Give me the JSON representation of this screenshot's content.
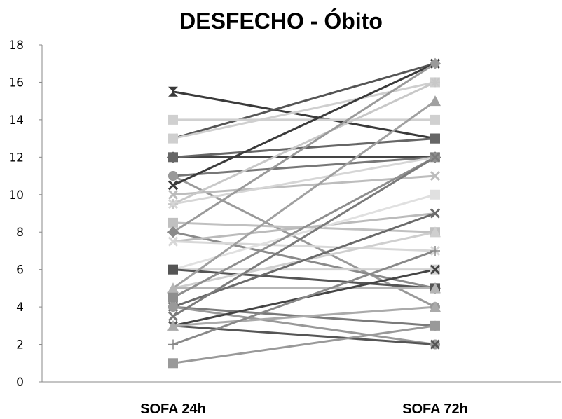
{
  "chart_data": {
    "type": "line",
    "title": "DESFECHO - Óbito",
    "xlabel": "",
    "ylabel": "",
    "categories": [
      "SOFA 24h",
      "SOFA 72h"
    ],
    "ylim": [
      0,
      18
    ],
    "yticks": [
      0,
      2,
      4,
      6,
      8,
      10,
      12,
      14,
      16,
      18
    ],
    "grid": false,
    "legend": "none",
    "series": [
      {
        "values": [
          15.5,
          13
        ],
        "color": "#3a3a3a",
        "marker": "hourglass"
      },
      {
        "values": [
          13,
          17
        ],
        "color": "#555555",
        "marker": "x"
      },
      {
        "values": [
          14,
          14
        ],
        "color": "#d0d0d0",
        "marker": "square"
      },
      {
        "values": [
          13,
          16
        ],
        "color": "#cfcfcf",
        "marker": "square"
      },
      {
        "values": [
          12,
          12
        ],
        "color": "#444444",
        "marker": "diamond"
      },
      {
        "values": [
          12,
          13
        ],
        "color": "#666666",
        "marker": "square"
      },
      {
        "values": [
          11,
          12
        ],
        "color": "#777777",
        "marker": "circle"
      },
      {
        "values": [
          11,
          4
        ],
        "color": "#999999",
        "marker": "circle"
      },
      {
        "values": [
          10.5,
          17
        ],
        "color": "#3a3a3a",
        "marker": "x"
      },
      {
        "values": [
          10,
          11
        ],
        "color": "#bdbdbd",
        "marker": "x"
      },
      {
        "values": [
          9.5,
          16
        ],
        "color": "#c8c8c8",
        "marker": "star"
      },
      {
        "values": [
          9.5,
          12
        ],
        "color": "#d6d6d6",
        "marker": "x"
      },
      {
        "values": [
          8.5,
          8
        ],
        "color": "#c0c0c0",
        "marker": "square"
      },
      {
        "values": [
          8,
          17
        ],
        "color": "#9a9a9a",
        "marker": "diamond"
      },
      {
        "values": [
          8,
          5
        ],
        "color": "#8a8a8a",
        "marker": "diamond"
      },
      {
        "values": [
          7.5,
          9
        ],
        "color": "#bbbbbb",
        "marker": "x"
      },
      {
        "values": [
          7.5,
          7
        ],
        "color": "#d8d8d8",
        "marker": "x"
      },
      {
        "values": [
          6,
          6
        ],
        "color": "#d2d2d2",
        "marker": "square"
      },
      {
        "values": [
          6,
          10
        ],
        "color": "#e0e0e0",
        "marker": "square"
      },
      {
        "values": [
          6,
          5
        ],
        "color": "#555555",
        "marker": "square"
      },
      {
        "values": [
          5,
          15
        ],
        "color": "#a0a0a0",
        "marker": "triangle"
      },
      {
        "values": [
          5,
          8
        ],
        "color": "#cfcfcf",
        "marker": "triangle"
      },
      {
        "values": [
          5,
          5
        ],
        "color": "#b5b5b5",
        "marker": "triangle"
      },
      {
        "values": [
          4.5,
          12
        ],
        "color": "#8e8e8e",
        "marker": "square"
      },
      {
        "values": [
          4,
          3
        ],
        "color": "#7a7a7a",
        "marker": "circle"
      },
      {
        "values": [
          4,
          9
        ],
        "color": "#6a6a6a",
        "marker": "x"
      },
      {
        "values": [
          4,
          2
        ],
        "color": "#999999",
        "marker": "circle"
      },
      {
        "values": [
          3.5,
          12
        ],
        "color": "#7a7a7a",
        "marker": "x"
      },
      {
        "values": [
          3,
          6
        ],
        "color": "#444444",
        "marker": "x"
      },
      {
        "values": [
          3,
          2
        ],
        "color": "#555555",
        "marker": "x"
      },
      {
        "values": [
          3,
          4
        ],
        "color": "#aaaaaa",
        "marker": "triangle"
      },
      {
        "values": [
          2,
          7
        ],
        "color": "#888888",
        "marker": "plus"
      },
      {
        "values": [
          1,
          3
        ],
        "color": "#999999",
        "marker": "square"
      }
    ]
  }
}
